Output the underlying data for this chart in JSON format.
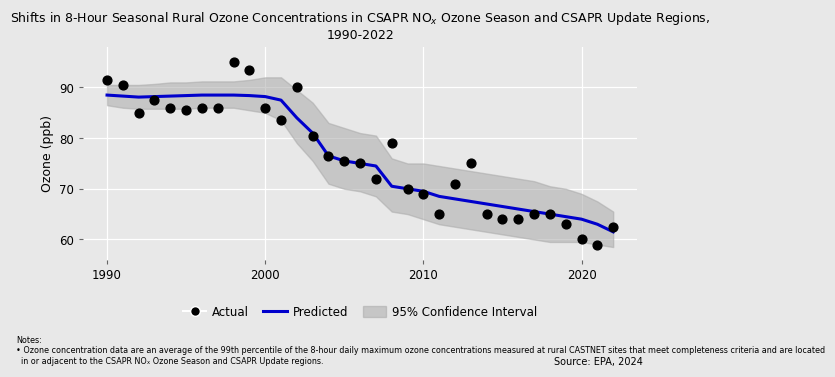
{
  "title": "Shifts in 8-Hour Seasonal Rural Ozone Concentrations in CSAPR NO$_x$ Ozone Season and CSAPR Update Regions,\n1990-2022",
  "ylabel": "Ozone (ppb)",
  "background_color": "#e8e8e8",
  "plot_bg_color": "#e8e8e8",
  "actual_years": [
    1990,
    1991,
    1992,
    1993,
    1994,
    1995,
    1996,
    1997,
    1998,
    1999,
    2000,
    2001,
    2002,
    2003,
    2004,
    2005,
    2006,
    2007,
    2008,
    2009,
    2010,
    2011,
    2012,
    2013,
    2014,
    2015,
    2016,
    2017,
    2018,
    2019,
    2020,
    2021,
    2022
  ],
  "actual_values": [
    91.5,
    90.5,
    85.0,
    87.5,
    86.0,
    85.5,
    86.0,
    86.0,
    95.0,
    93.5,
    86.0,
    83.5,
    90.0,
    80.5,
    76.5,
    75.5,
    75.0,
    72.0,
    79.0,
    70.0,
    69.0,
    65.0,
    71.0,
    75.0,
    65.0,
    64.0,
    64.0,
    65.0,
    65.0,
    63.0,
    60.0,
    59.0,
    62.5
  ],
  "predicted_years": [
    1990,
    1991,
    1992,
    1993,
    1994,
    1995,
    1996,
    1997,
    1998,
    1999,
    2000,
    2001,
    2002,
    2003,
    2004,
    2005,
    2006,
    2007,
    2008,
    2009,
    2010,
    2011,
    2012,
    2013,
    2014,
    2015,
    2016,
    2017,
    2018,
    2019,
    2020,
    2021,
    2022
  ],
  "predicted_values": [
    88.5,
    88.3,
    88.1,
    88.2,
    88.3,
    88.4,
    88.5,
    88.5,
    88.5,
    88.4,
    88.2,
    87.5,
    84.0,
    81.0,
    76.5,
    75.5,
    75.0,
    74.5,
    70.5,
    70.0,
    69.5,
    68.5,
    68.0,
    67.5,
    67.0,
    66.5,
    66.0,
    65.5,
    65.0,
    64.5,
    64.0,
    63.0,
    61.5
  ],
  "ci_lower": [
    86.5,
    86.0,
    85.8,
    85.8,
    85.8,
    85.8,
    86.0,
    86.0,
    86.0,
    85.5,
    85.0,
    83.5,
    79.0,
    75.5,
    71.0,
    70.0,
    69.5,
    68.5,
    65.5,
    65.0,
    64.0,
    63.0,
    62.5,
    62.0,
    61.5,
    61.0,
    60.5,
    60.0,
    59.5,
    59.5,
    59.5,
    59.0,
    58.5
  ],
  "ci_upper": [
    90.5,
    90.5,
    90.5,
    90.7,
    91.0,
    91.0,
    91.2,
    91.2,
    91.2,
    91.5,
    92.0,
    92.0,
    89.5,
    87.0,
    83.0,
    82.0,
    81.0,
    80.5,
    76.0,
    75.0,
    75.0,
    74.5,
    74.0,
    73.5,
    73.0,
    72.5,
    72.0,
    71.5,
    70.5,
    70.0,
    69.0,
    67.5,
    65.5
  ],
  "line_color": "#0000cc",
  "ci_color": "#aaaaaa",
  "dot_color": "#000000",
  "xlim": [
    1988.5,
    2023.5
  ],
  "ylim": [
    56,
    98
  ],
  "xticks": [
    1990,
    2000,
    2010,
    2020
  ],
  "yticks": [
    60,
    70,
    80,
    90
  ],
  "grid_color": "#ffffff",
  "notes_line1": "Notes:",
  "notes_line2": "• Ozone concentration data are an average of the 99th percentile of the 8-hour daily maximum ozone concentrations measured at rural CASTNET sites that meet completeness criteria and are located",
  "notes_line3": "  in or adjacent to the CSAPR NOₓ Ozone Season and CSAPR Update regions.",
  "source_text": "Source: EPA, 2024",
  "legend_actual": "Actual",
  "legend_predicted": "Predicted",
  "legend_ci": "95% Confidence Interval"
}
